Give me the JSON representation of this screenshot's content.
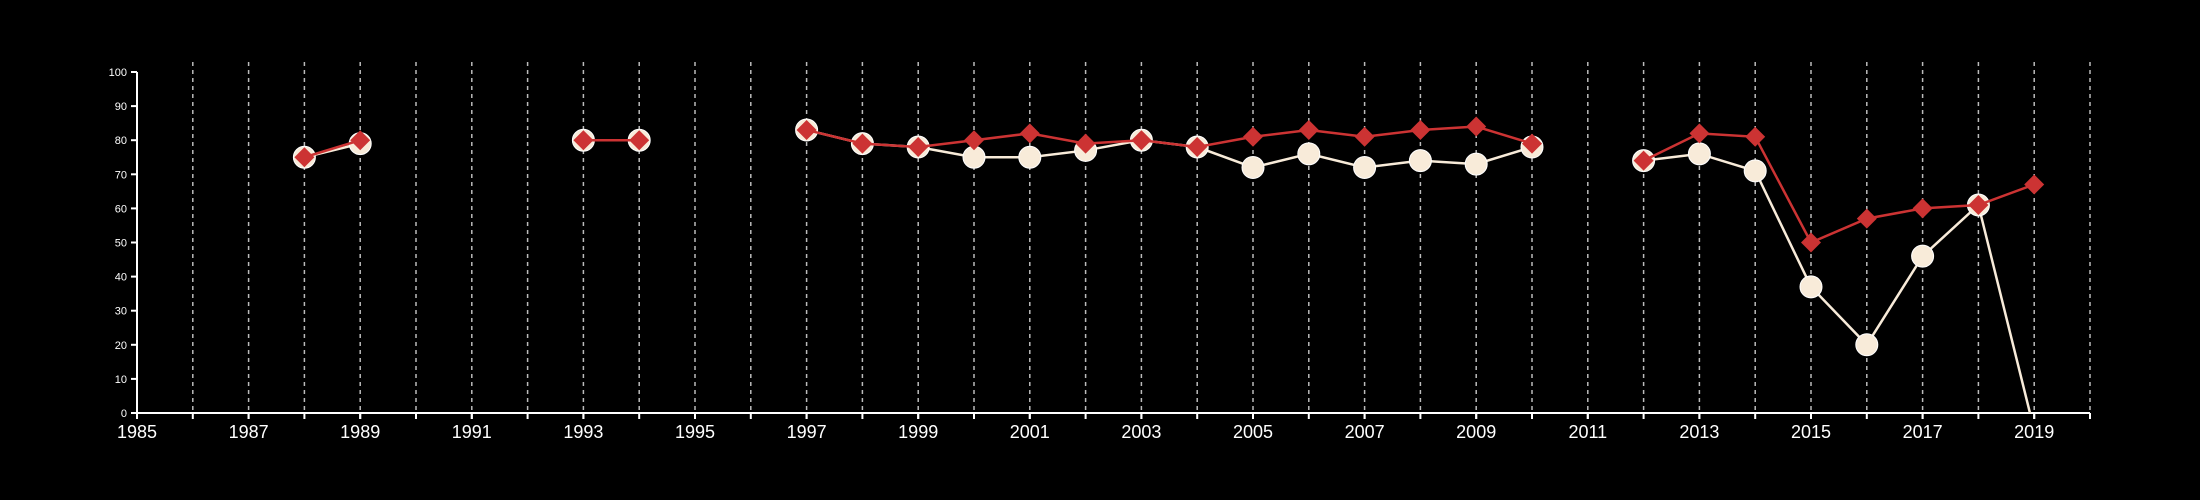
{
  "chart_data": {
    "type": "line",
    "title": "",
    "xlabel": "",
    "ylabel": "",
    "xlim": [
      1985,
      2020
    ],
    "ylim": [
      0,
      100
    ],
    "x_ticks": [
      1985,
      1987,
      1989,
      1991,
      1993,
      1995,
      1997,
      1999,
      2001,
      2003,
      2005,
      2007,
      2009,
      2011,
      2013,
      2015,
      2017,
      2019
    ],
    "y_ticks": [
      0,
      10,
      20,
      30,
      40,
      50,
      60,
      70,
      80,
      90,
      100
    ],
    "grid": {
      "vertical": true,
      "horizontal": false,
      "style": "dashed"
    },
    "legend": "none",
    "colors": {
      "background": "#000000",
      "axis": "#ffffff",
      "grid": "#bbbbbb",
      "series_red": "#cc3333",
      "series_cream": "#f8ebd9"
    },
    "series": [
      {
        "marker": "circle",
        "color": "#f8ebd9",
        "points": [
          [
            1988,
            75
          ],
          [
            1989,
            79
          ],
          [
            1993,
            80
          ],
          [
            1994,
            80
          ],
          [
            1997,
            83
          ],
          [
            1998,
            79
          ],
          [
            1999,
            78
          ],
          [
            2000,
            75
          ],
          [
            2001,
            75
          ],
          [
            2002,
            77
          ],
          [
            2003,
            80
          ],
          [
            2004,
            78
          ],
          [
            2005,
            72
          ],
          [
            2006,
            76
          ],
          [
            2007,
            72
          ],
          [
            2008,
            74
          ],
          [
            2009,
            73
          ],
          [
            2010,
            78
          ],
          [
            2012,
            74
          ],
          [
            2013,
            76
          ],
          [
            2014,
            71
          ],
          [
            2015,
            37
          ],
          [
            2016,
            20
          ],
          [
            2017,
            46
          ],
          [
            2018,
            61
          ],
          [
            2019,
            -5
          ]
        ]
      },
      {
        "marker": "diamond",
        "color": "#cc3333",
        "points": [
          [
            1988,
            75
          ],
          [
            1989,
            80
          ],
          [
            1993,
            80
          ],
          [
            1994,
            80
          ],
          [
            1997,
            83
          ],
          [
            1998,
            79
          ],
          [
            1999,
            78
          ],
          [
            2000,
            80
          ],
          [
            2001,
            82
          ],
          [
            2002,
            79
          ],
          [
            2003,
            80
          ],
          [
            2004,
            78
          ],
          [
            2005,
            81
          ],
          [
            2006,
            83
          ],
          [
            2007,
            81
          ],
          [
            2008,
            83
          ],
          [
            2009,
            84
          ],
          [
            2010,
            79
          ],
          [
            2012,
            74
          ],
          [
            2013,
            82
          ],
          [
            2014,
            81
          ],
          [
            2015,
            50
          ],
          [
            2016,
            57
          ],
          [
            2017,
            60
          ],
          [
            2018,
            61
          ],
          [
            2019,
            67
          ]
        ]
      }
    ]
  }
}
